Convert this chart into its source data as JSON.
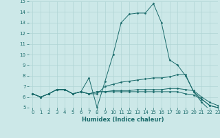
{
  "xlabel": "Humidex (Indice chaleur)",
  "xlim": [
    -0.5,
    23
  ],
  "ylim": [
    5,
    15
  ],
  "xticks": [
    0,
    1,
    2,
    3,
    4,
    5,
    6,
    7,
    8,
    9,
    10,
    11,
    12,
    13,
    14,
    15,
    16,
    17,
    18,
    19,
    20,
    21,
    22,
    23
  ],
  "yticks": [
    5,
    6,
    7,
    8,
    9,
    10,
    11,
    12,
    13,
    14,
    15
  ],
  "bg_color": "#cce8e8",
  "line_color": "#1a6b6b",
  "grid_color": "#b0d4d4",
  "series": [
    [
      6.3,
      6.0,
      6.3,
      6.7,
      6.7,
      6.3,
      6.5,
      7.8,
      5.0,
      7.5,
      10.0,
      13.0,
      13.8,
      13.9,
      13.9,
      14.8,
      13.0,
      9.5,
      9.0,
      8.0,
      6.5,
      5.5,
      4.8,
      5.0
    ],
    [
      6.3,
      6.0,
      6.3,
      6.7,
      6.7,
      6.3,
      6.5,
      6.3,
      6.3,
      7.0,
      7.2,
      7.4,
      7.5,
      7.6,
      7.7,
      7.8,
      7.8,
      7.9,
      8.1,
      8.1,
      6.5,
      5.8,
      5.2,
      5.0
    ],
    [
      6.3,
      6.0,
      6.3,
      6.7,
      6.7,
      6.3,
      6.5,
      6.3,
      6.5,
      6.5,
      6.5,
      6.5,
      6.5,
      6.5,
      6.5,
      6.5,
      6.5,
      6.5,
      6.5,
      6.3,
      6.2,
      5.8,
      5.2,
      5.0
    ],
    [
      6.3,
      6.0,
      6.3,
      6.7,
      6.7,
      6.3,
      6.5,
      6.3,
      6.5,
      6.5,
      6.6,
      6.6,
      6.6,
      6.7,
      6.7,
      6.7,
      6.7,
      6.8,
      6.8,
      6.7,
      6.6,
      6.0,
      5.5,
      5.2
    ]
  ],
  "tick_fontsize": 5.0,
  "xlabel_fontsize": 6.0
}
